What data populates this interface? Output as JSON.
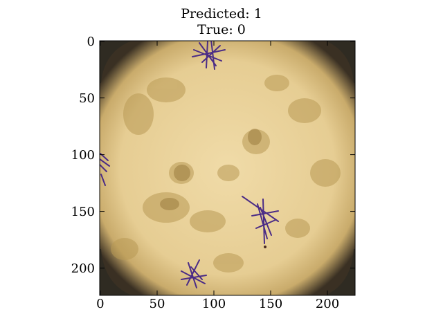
{
  "title": {
    "line1": "Predicted: 1",
    "line2": "True: 0"
  },
  "axes": {
    "x_ticks": [
      "0",
      "50",
      "100",
      "150",
      "200"
    ],
    "y_ticks": [
      "0",
      "50",
      "100",
      "150",
      "200"
    ],
    "x_range": [
      0,
      224
    ],
    "y_range": [
      0,
      224
    ]
  },
  "image": {
    "subject": "dermoscopy skin lesion with purple ink markings",
    "colors": {
      "skin": "#e9d3a0",
      "lesion": "#b79a52",
      "ink": "#4b2c86"
    }
  }
}
